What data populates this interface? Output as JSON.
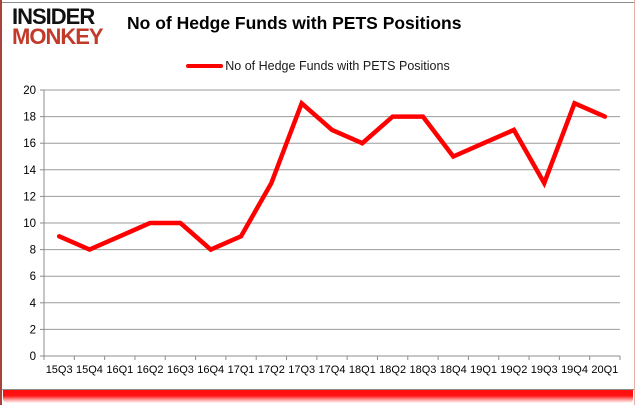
{
  "logo": {
    "line1": "INSIDER",
    "line2": "MONKEY"
  },
  "header": {
    "title": "No of Hedge Funds with PETS Positions"
  },
  "legend": {
    "label": "No of Hedge Funds with PETS Positions"
  },
  "colors": {
    "line": "#ff0000",
    "grid": "#9b9b9b",
    "axis": "#8c8c8c",
    "tick_text": "#000000",
    "logo_black": "#111111",
    "logo_red": "#c23b2a",
    "bottom_bar": "#ff0000"
  },
  "chart_data": {
    "type": "line",
    "title": "No of Hedge Funds with PETS Positions",
    "categories": [
      "15Q3",
      "15Q4",
      "16Q1",
      "16Q2",
      "16Q3",
      "16Q4",
      "17Q1",
      "17Q2",
      "17Q3",
      "17Q4",
      "18Q1",
      "18Q2",
      "18Q3",
      "18Q4",
      "19Q1",
      "19Q2",
      "19Q3",
      "19Q4",
      "20Q1"
    ],
    "series": [
      {
        "name": "No of Hedge Funds with PETS Positions",
        "color": "#ff0000",
        "values": [
          9,
          8,
          9,
          10,
          10,
          8,
          9,
          13,
          19,
          17,
          16,
          18,
          18,
          15,
          16,
          17,
          13,
          19,
          18
        ]
      }
    ],
    "xlabel": "",
    "ylabel": "",
    "ylim": [
      0,
      20
    ],
    "ytick_step": 2,
    "grid": true,
    "legend_position": "top-center"
  }
}
